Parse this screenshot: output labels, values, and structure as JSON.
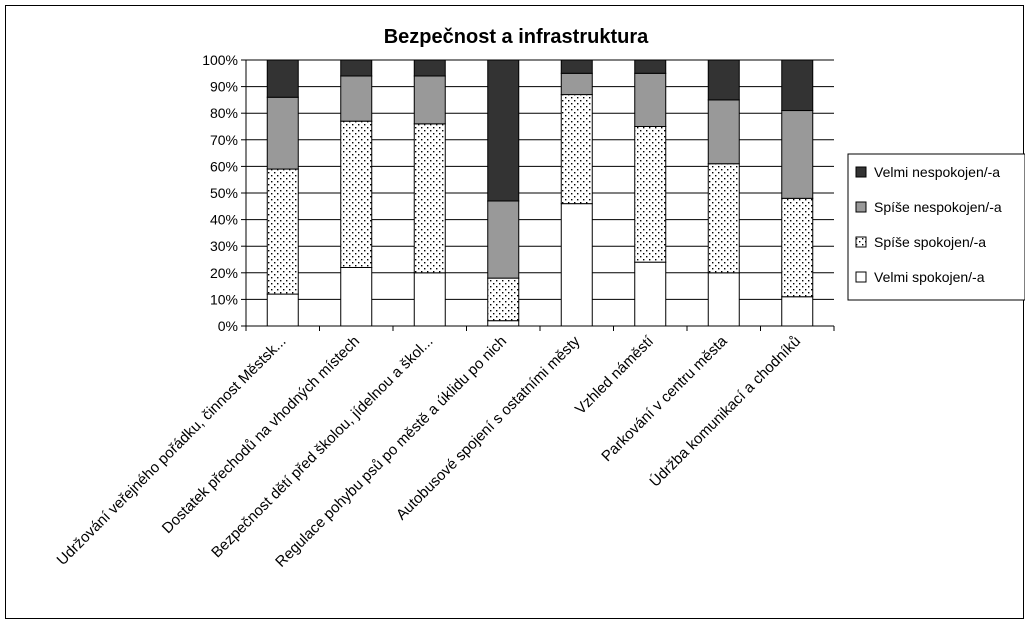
{
  "chart_data": {
    "type": "bar",
    "stacked": "percent",
    "title": "Bezpečnost a infrastruktura",
    "xlabel": "",
    "ylabel": "",
    "ylim": [
      0,
      100
    ],
    "y_ticks": [
      "0%",
      "10%",
      "20%",
      "30%",
      "40%",
      "50%",
      "60%",
      "70%",
      "80%",
      "90%",
      "100%"
    ],
    "grid": "horizontal",
    "legend_position": "right",
    "categories": [
      "Udržování veřejného pořádku, činnost Městsk...",
      "Dostatek přechodů na vhodných místech",
      "Bezpečnost dětí před školou, jídelnou a škol...",
      "Regulace pohybu psů po městě a úklidu po nich",
      "Autobusové spojení s ostatními městy",
      "Vzhled náměstí",
      "Parkování v centru města",
      "Údržba komunikací a chodníků"
    ],
    "series": [
      {
        "name": "Velmi spokojen/-a",
        "fill": "white",
        "values": [
          12,
          22,
          20,
          2,
          46,
          24,
          20,
          11
        ]
      },
      {
        "name": "Spíše spokojen/-a",
        "fill": "dotted",
        "values": [
          47,
          55,
          56,
          16,
          41,
          51,
          41,
          37
        ]
      },
      {
        "name": "Spíše nespokojen/-a",
        "fill": "#999999",
        "values": [
          27,
          17,
          18,
          29,
          8,
          20,
          24,
          33
        ]
      },
      {
        "name": "Velmi nespokojen/-a",
        "fill": "#333333",
        "values": [
          14,
          6,
          6,
          53,
          5,
          5,
          15,
          19
        ]
      }
    ],
    "colors": {
      "white": "#ffffff",
      "light_gray": "#999999",
      "dark_gray": "#333333",
      "dot": "#000000"
    }
  }
}
